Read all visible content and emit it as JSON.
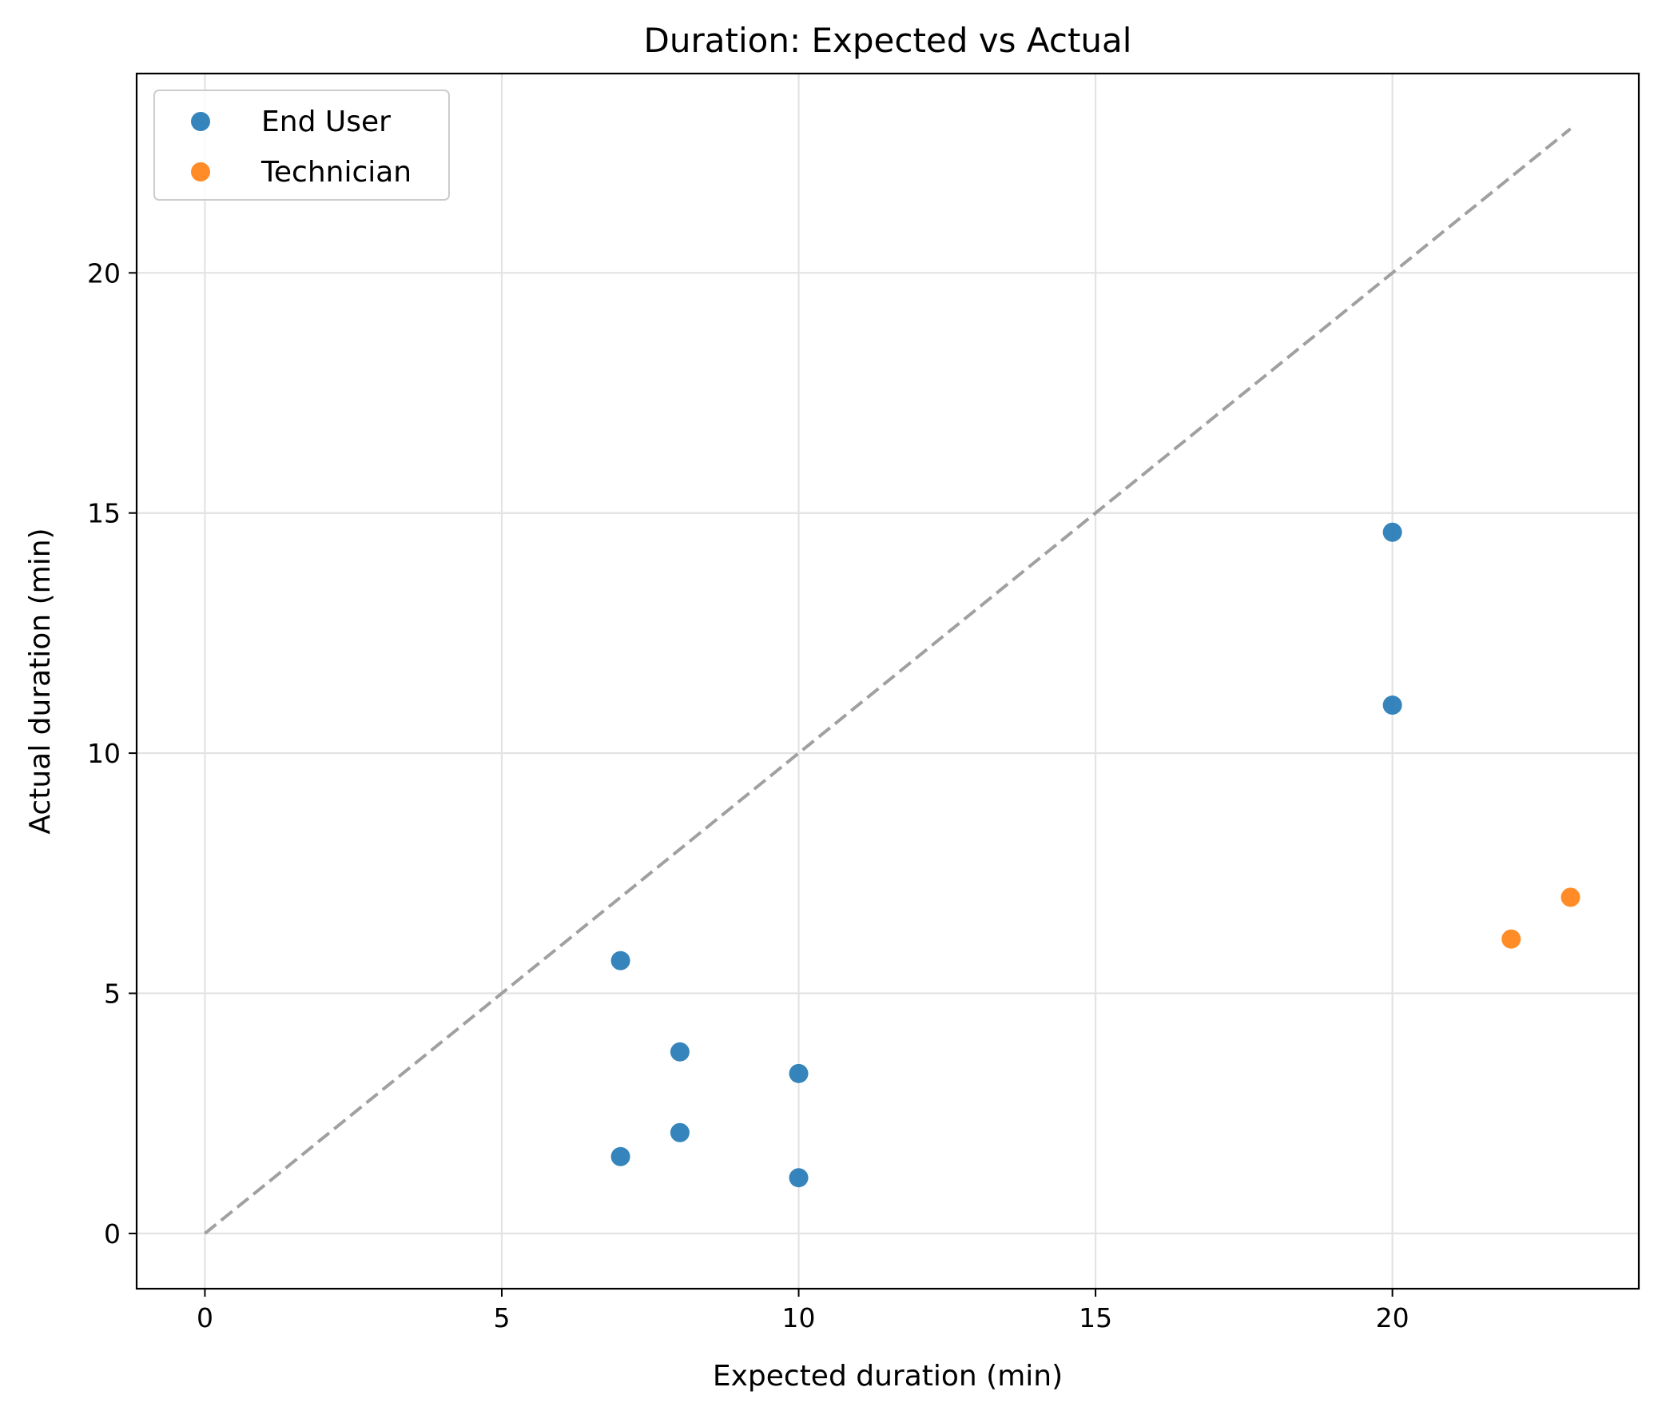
{
  "chart_data": {
    "type": "scatter",
    "title": "Duration: Expected vs Actual",
    "xlabel": "Expected duration (min)",
    "ylabel": "Actual duration (min)",
    "xlim": [
      -1.15,
      24.15
    ],
    "ylim": [
      -1.15,
      24.15
    ],
    "xticks": [
      0,
      5,
      10,
      15,
      20
    ],
    "yticks": [
      0,
      5,
      10,
      15,
      20
    ],
    "xtick_labels": [
      "0",
      "5",
      "10",
      "15",
      "20"
    ],
    "ytick_labels": [
      "0",
      "5",
      "10",
      "15",
      "20"
    ],
    "grid": true,
    "legend_position": "top-left",
    "reference_line": {
      "style": "dashed",
      "color": "#a0a0a0",
      "x": [
        0,
        23
      ],
      "y": [
        0,
        23
      ]
    },
    "series": [
      {
        "name": "End User",
        "color": "#1f77b4",
        "points": [
          {
            "x": 7,
            "y": 5.68
          },
          {
            "x": 7,
            "y": 1.6
          },
          {
            "x": 8,
            "y": 3.78
          },
          {
            "x": 8,
            "y": 2.1
          },
          {
            "x": 10,
            "y": 3.33
          },
          {
            "x": 10,
            "y": 1.16
          },
          {
            "x": 20,
            "y": 14.6
          },
          {
            "x": 20,
            "y": 11.0
          }
        ]
      },
      {
        "name": "Technician",
        "color": "#ff7f0e",
        "points": [
          {
            "x": 22,
            "y": 6.13
          },
          {
            "x": 23,
            "y": 7.0
          }
        ]
      }
    ]
  }
}
